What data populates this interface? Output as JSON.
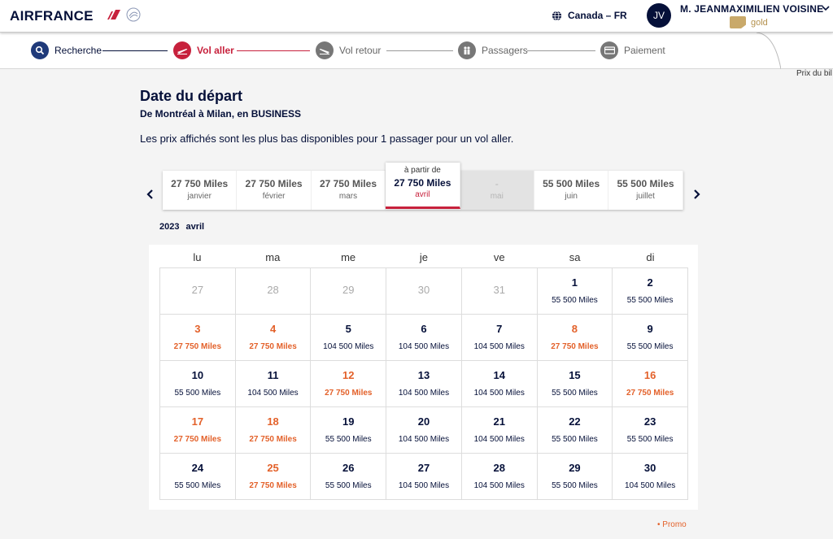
{
  "header": {
    "logo": "AIRFRANCE",
    "region": "Canada – FR",
    "avatar_initials": "JV",
    "user_name": "M. JEANMAXIMILIEN VOISINE",
    "tier": "gold"
  },
  "stepper": {
    "steps": [
      {
        "label": "Recherche",
        "state": "done",
        "icon": "search-icon"
      },
      {
        "label": "Vol aller",
        "state": "current",
        "icon": "plane-departure-icon"
      },
      {
        "label": "Vol retour",
        "state": "todo",
        "icon": "plane-return-icon"
      },
      {
        "label": "Passagers",
        "state": "todo",
        "icon": "passengers-icon"
      },
      {
        "label": "Paiement",
        "state": "todo",
        "icon": "credit-card-icon"
      }
    ],
    "side_label": "Prix du bil"
  },
  "content": {
    "title": "Date du départ",
    "subtitle": "De Montréal à Milan, en BUSINESS",
    "description": "Les prix affichés sont les plus bas disponibles pour 1 passager pour un vol aller."
  },
  "months": [
    {
      "price": "27 750  Miles",
      "month": "janvier"
    },
    {
      "price": "27 750  Miles",
      "month": "février"
    },
    {
      "price": "27 750  Miles",
      "month": "mars"
    },
    {
      "from": "à partir de",
      "price": "27 750  Miles",
      "month": "avril",
      "active": true
    },
    {
      "price": "-",
      "month": "mai",
      "disabled": true
    },
    {
      "price": "55 500  Miles",
      "month": "juin"
    },
    {
      "price": "55 500  Miles",
      "month": "juillet"
    }
  ],
  "calendar": {
    "year": "2023",
    "month": "avril",
    "weekdays": [
      "lu",
      "ma",
      "me",
      "je",
      "ve",
      "sa",
      "di"
    ],
    "days": [
      {
        "d": "27",
        "other": true
      },
      {
        "d": "28",
        "other": true
      },
      {
        "d": "29",
        "other": true
      },
      {
        "d": "30",
        "other": true
      },
      {
        "d": "31",
        "other": true
      },
      {
        "d": "1",
        "p": "55 500  Miles"
      },
      {
        "d": "2",
        "p": "55 500  Miles"
      },
      {
        "d": "3",
        "p": "27 750  Miles",
        "promo": true
      },
      {
        "d": "4",
        "p": "27 750  Miles",
        "promo": true
      },
      {
        "d": "5",
        "p": "104 500  Miles"
      },
      {
        "d": "6",
        "p": "104 500  Miles"
      },
      {
        "d": "7",
        "p": "104 500  Miles"
      },
      {
        "d": "8",
        "p": "27 750  Miles",
        "promo": true
      },
      {
        "d": "9",
        "p": "55 500  Miles"
      },
      {
        "d": "10",
        "p": "55 500  Miles"
      },
      {
        "d": "11",
        "p": "104 500  Miles"
      },
      {
        "d": "12",
        "p": "27 750  Miles",
        "promo": true
      },
      {
        "d": "13",
        "p": "104 500  Miles"
      },
      {
        "d": "14",
        "p": "104 500  Miles"
      },
      {
        "d": "15",
        "p": "55 500  Miles"
      },
      {
        "d": "16",
        "p": "27 750  Miles",
        "promo": true
      },
      {
        "d": "17",
        "p": "27 750  Miles",
        "promo": true
      },
      {
        "d": "18",
        "p": "27 750  Miles",
        "promo": true
      },
      {
        "d": "19",
        "p": "55 500  Miles"
      },
      {
        "d": "20",
        "p": "104 500  Miles"
      },
      {
        "d": "21",
        "p": "104 500  Miles"
      },
      {
        "d": "22",
        "p": "55 500  Miles"
      },
      {
        "d": "23",
        "p": "55 500  Miles"
      },
      {
        "d": "24",
        "p": "55 500  Miles"
      },
      {
        "d": "25",
        "p": "27 750  Miles",
        "promo": true
      },
      {
        "d": "26",
        "p": "55 500  Miles"
      },
      {
        "d": "27",
        "p": "104 500  Miles"
      },
      {
        "d": "28",
        "p": "104 500  Miles"
      },
      {
        "d": "29",
        "p": "55 500  Miles"
      },
      {
        "d": "30",
        "p": "104 500  Miles"
      }
    ]
  },
  "legend": {
    "promo": "• Promo"
  },
  "colors": {
    "navy": "#051039",
    "red": "#c7213c",
    "promo": "#e3612a",
    "gold": "#b4914d"
  }
}
